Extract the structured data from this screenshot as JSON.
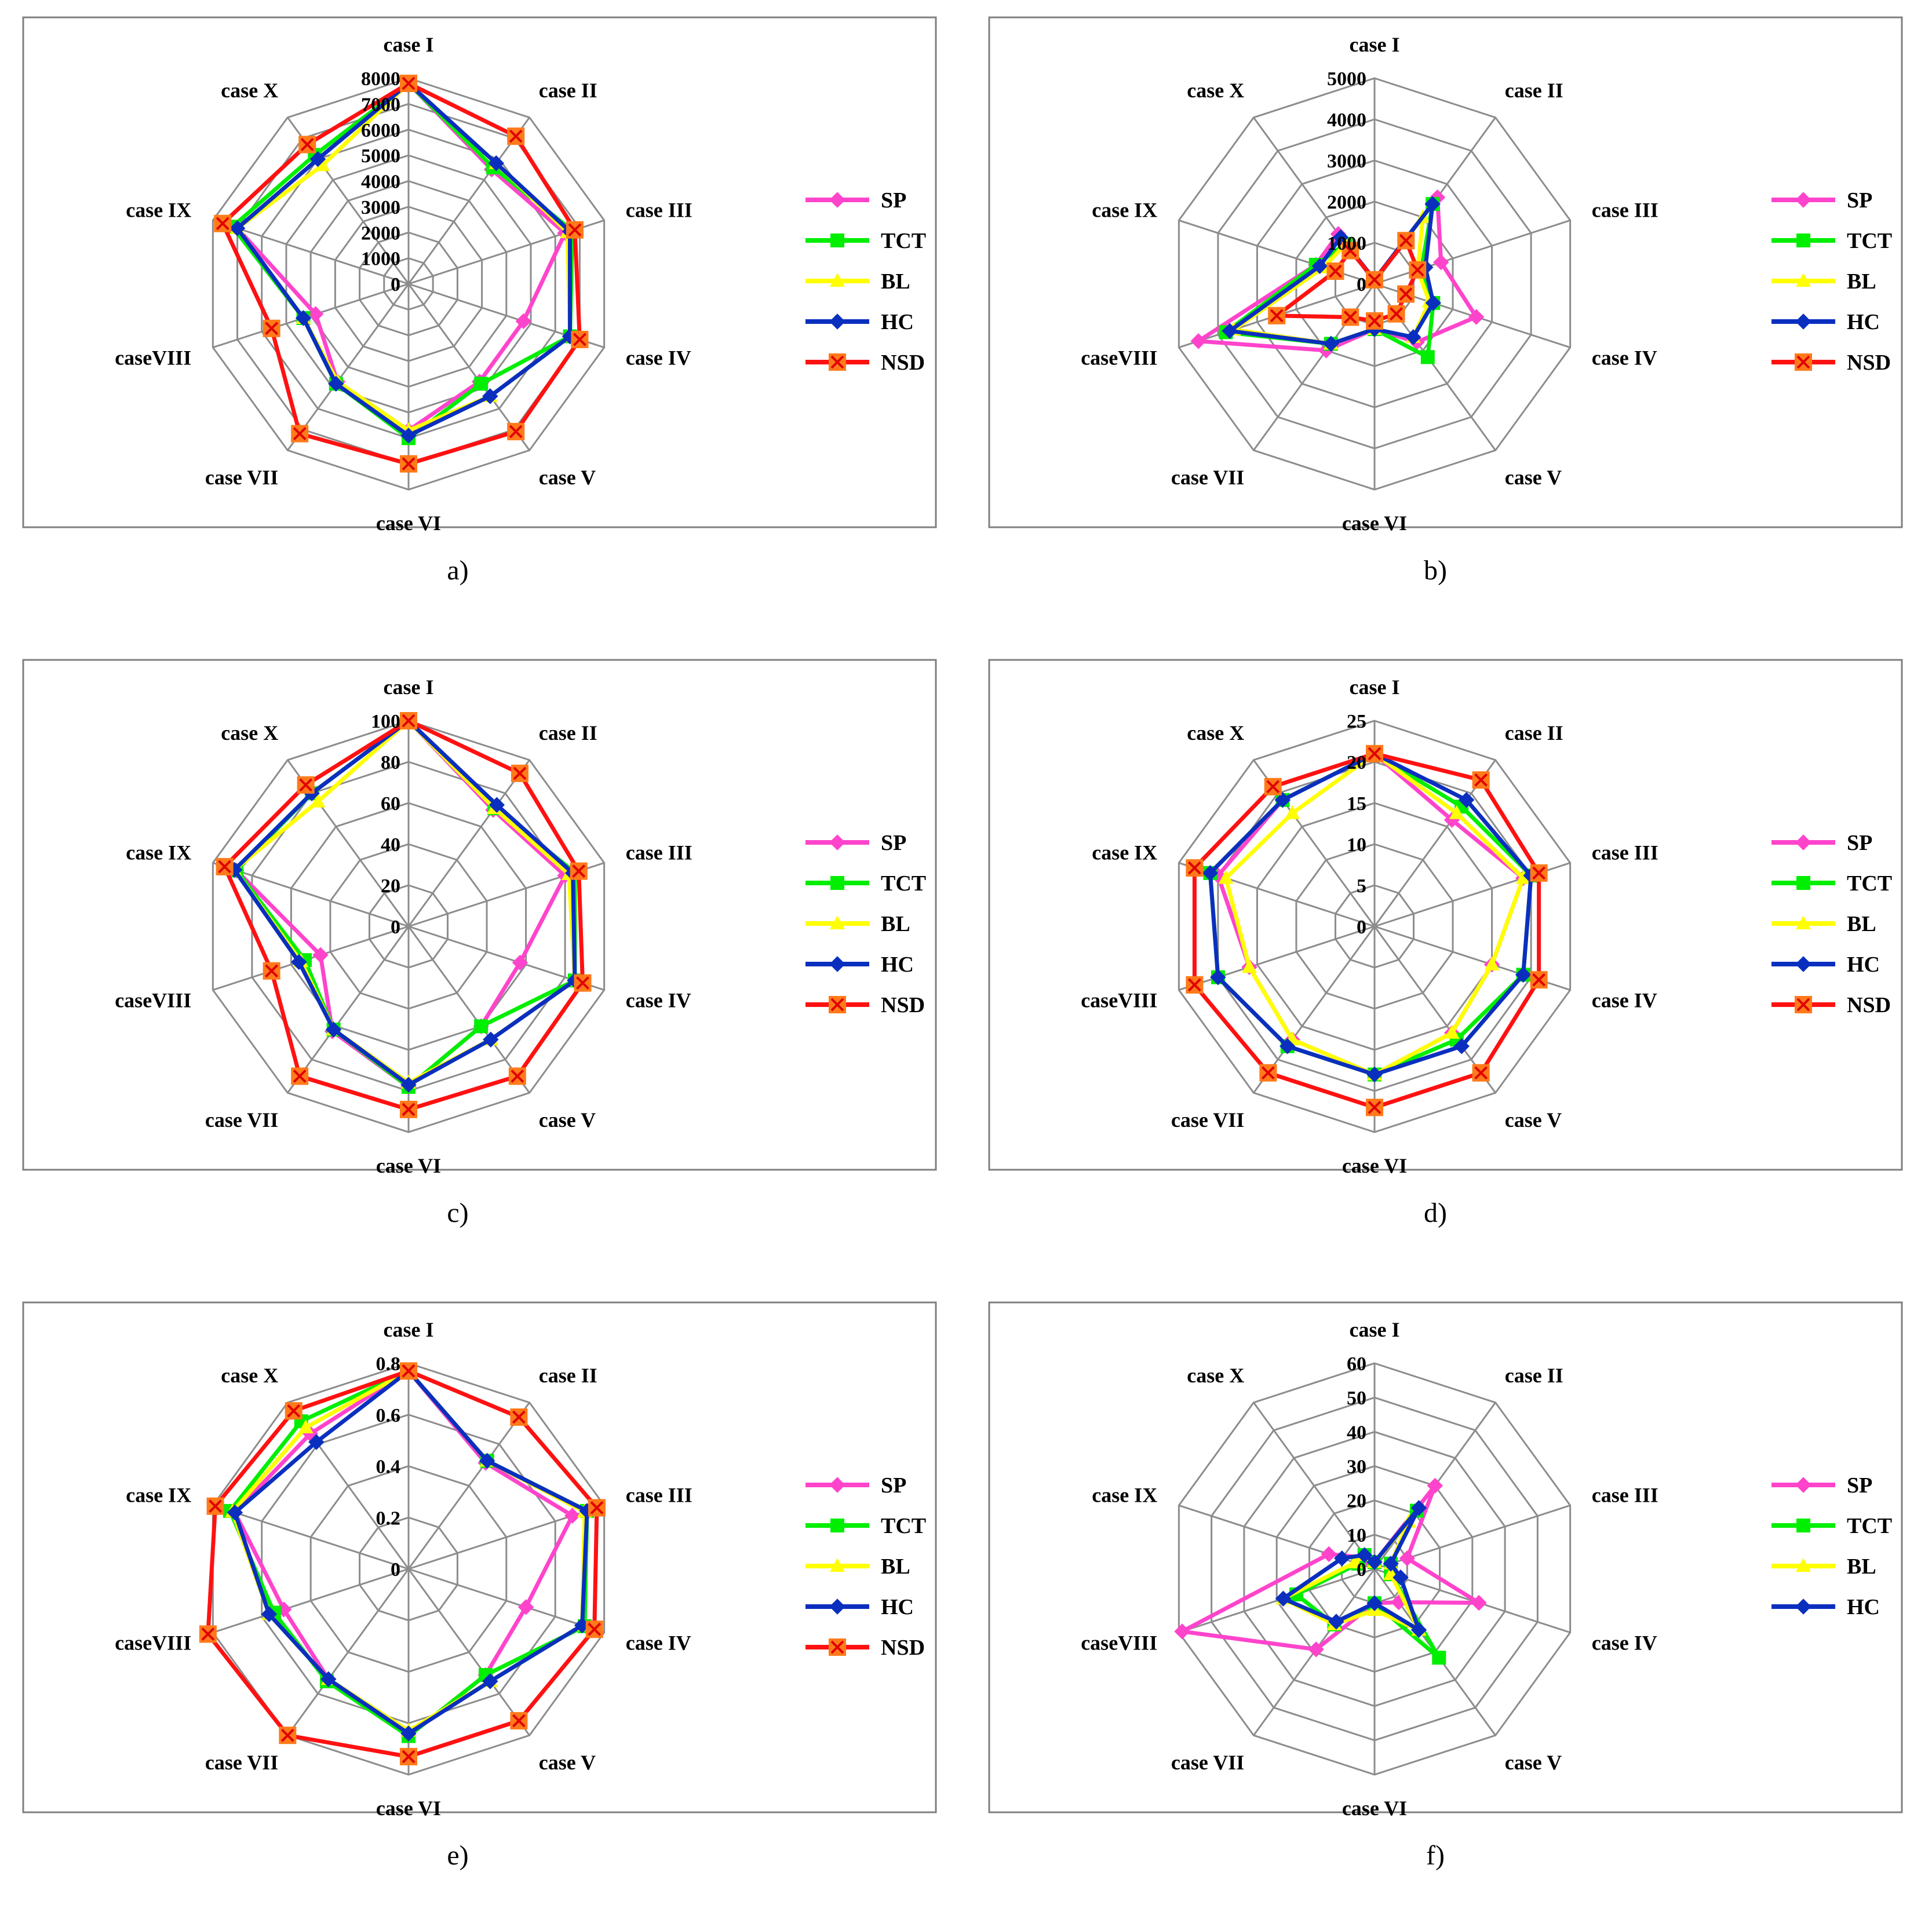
{
  "categories": [
    "case I",
    "case II",
    "case III",
    "case IV",
    "case V",
    "case VI",
    "case VII",
    "caseVIII",
    "case IX",
    "case X"
  ],
  "series_colors": {
    "SP": "#ff44cc",
    "TCT": "#00ee00",
    "BL": "#ffff00",
    "HC": "#0a2fbf",
    "NSD": "#ff1111"
  },
  "chart_data": [
    {
      "type": "radar",
      "caption": "a)",
      "categories": [
        "case I",
        "case II",
        "case III",
        "case IV",
        "case V",
        "case VI",
        "case VII",
        "caseVIII",
        "case IX",
        "case X"
      ],
      "ticks": [
        "0",
        "1000",
        "2000",
        "3000",
        "4000",
        "5000",
        "6000",
        "7000",
        "8000"
      ],
      "rmax": 8000,
      "legend": [
        "SP",
        "TCT",
        "BL",
        "HC",
        "NSD"
      ],
      "series": [
        {
          "name": "SP",
          "values": [
            7800,
            5500,
            6400,
            4700,
            4700,
            5700,
            4700,
            3800,
            7000,
            6000
          ]
        },
        {
          "name": "TCT",
          "values": [
            7800,
            5600,
            6700,
            6600,
            4800,
            6000,
            4800,
            4300,
            7200,
            6200
          ]
        },
        {
          "name": "BL",
          "values": [
            7800,
            5800,
            6500,
            6600,
            5400,
            5700,
            4700,
            4300,
            7000,
            5700
          ]
        },
        {
          "name": "HC",
          "values": [
            7800,
            5800,
            6600,
            6600,
            5400,
            5900,
            4800,
            4300,
            7000,
            6000
          ]
        },
        {
          "name": "NSD",
          "values": [
            7800,
            7100,
            6800,
            7000,
            7100,
            7000,
            7200,
            5600,
            7600,
            6700
          ]
        }
      ]
    },
    {
      "type": "radar",
      "caption": "b)",
      "categories": [
        "case I",
        "case II",
        "case III",
        "case IV",
        "case V",
        "case VI",
        "case VII",
        "caseVIII",
        "case IX",
        "case X"
      ],
      "ticks": [
        "0",
        "1000",
        "2000",
        "3000",
        "4000",
        "5000"
      ],
      "rmax": 5000,
      "legend": [
        "SP",
        "TCT",
        "BL",
        "HC",
        "NSD"
      ],
      "series": [
        {
          "name": "SP",
          "values": [
            100,
            2600,
            1700,
            2600,
            1750,
            1100,
            2000,
            4500,
            1500,
            1500
          ]
        },
        {
          "name": "TCT",
          "values": [
            100,
            2400,
            1200,
            1500,
            2200,
            1100,
            1800,
            3800,
            1500,
            1200
          ]
        },
        {
          "name": "BL",
          "values": [
            100,
            2000,
            1100,
            1400,
            1600,
            1100,
            1800,
            3600,
            1300,
            1200
          ]
        },
        {
          "name": "HC",
          "values": [
            100,
            2400,
            1300,
            1500,
            1600,
            1100,
            1800,
            3700,
            1400,
            1400
          ]
        },
        {
          "name": "NSD",
          "values": [
            100,
            1300,
            1100,
            800,
            900,
            900,
            1000,
            2500,
            1000,
            1000
          ]
        }
      ]
    },
    {
      "type": "radar",
      "caption": "c)",
      "categories": [
        "case I",
        "case II",
        "case III",
        "case IV",
        "case V",
        "case VI",
        "case VII",
        "caseVIII",
        "case IX",
        "case X"
      ],
      "ticks": [
        "0",
        "20",
        "40",
        "60",
        "80",
        "100"
      ],
      "rmax": 100,
      "legend": [
        "SP",
        "TCT",
        "BL",
        "HC",
        "NSD"
      ],
      "series": [
        {
          "name": "SP",
          "values": [
            100,
            70,
            80,
            57,
            60,
            78,
            63,
            45,
            88,
            80
          ]
        },
        {
          "name": "TCT",
          "values": [
            100,
            71,
            85,
            85,
            60,
            78,
            62,
            53,
            88,
            80
          ]
        },
        {
          "name": "BL",
          "values": [
            100,
            71,
            82,
            85,
            68,
            76,
            62,
            55,
            89,
            75
          ]
        },
        {
          "name": "HC",
          "values": [
            100,
            73,
            84,
            85,
            68,
            77,
            62,
            56,
            89,
            80
          ]
        },
        {
          "name": "NSD",
          "values": [
            100,
            92,
            87,
            89,
            90,
            89,
            90,
            70,
            94,
            85
          ]
        }
      ]
    },
    {
      "type": "radar",
      "caption": "d)",
      "categories": [
        "case I",
        "case II",
        "case III",
        "case IV",
        "case V",
        "case VI",
        "case VII",
        "caseVIII",
        "case IX",
        "case X"
      ],
      "ticks": [
        "0",
        "5",
        "10",
        "15",
        "20",
        "25"
      ],
      "rmax": 25,
      "legend": [
        "SP",
        "TCT",
        "BL",
        "HC",
        "NSD"
      ],
      "series": [
        {
          "name": "SP",
          "values": [
            21,
            16,
            19,
            15,
            16,
            18,
            17,
            16,
            20,
            19
          ]
        },
        {
          "name": "TCT",
          "values": [
            21,
            18,
            20,
            19,
            17,
            18,
            18,
            20,
            21,
            19
          ]
        },
        {
          "name": "BL",
          "values": [
            21,
            17,
            19,
            15,
            16,
            18,
            17,
            16,
            19,
            17
          ]
        },
        {
          "name": "HC",
          "values": [
            21,
            19,
            20,
            19,
            18,
            18,
            18,
            20,
            21,
            19
          ]
        },
        {
          "name": "NSD",
          "values": [
            21,
            22,
            21,
            21,
            22,
            22,
            22,
            23,
            23,
            21
          ]
        }
      ]
    },
    {
      "type": "radar",
      "caption": "e)",
      "categories": [
        "case I",
        "case II",
        "case III",
        "case IV",
        "case V",
        "case VI",
        "case VII",
        "caseVIII",
        "case IX",
        "case X"
      ],
      "ticks": [
        "0",
        "0.2",
        "0.4",
        "0.6",
        "0.8"
      ],
      "rmax": 0.8,
      "legend": [
        "SP",
        "TCT",
        "BL",
        "HC",
        "NSD"
      ],
      "series": [
        {
          "name": "SP",
          "values": [
            0.77,
            0.51,
            0.67,
            0.48,
            0.51,
            0.65,
            0.53,
            0.51,
            0.71,
            0.65
          ]
        },
        {
          "name": "TCT",
          "values": [
            0.77,
            0.52,
            0.73,
            0.72,
            0.51,
            0.65,
            0.54,
            0.55,
            0.73,
            0.71
          ]
        },
        {
          "name": "BL",
          "values": [
            0.77,
            0.52,
            0.72,
            0.71,
            0.54,
            0.63,
            0.53,
            0.57,
            0.72,
            0.68
          ]
        },
        {
          "name": "HC",
          "values": [
            0.77,
            0.52,
            0.73,
            0.71,
            0.54,
            0.64,
            0.53,
            0.57,
            0.71,
            0.61
          ]
        },
        {
          "name": "NSD",
          "values": [
            0.77,
            0.73,
            0.77,
            0.76,
            0.73,
            0.73,
            0.8,
            0.82,
            0.79,
            0.76
          ]
        }
      ]
    },
    {
      "type": "radar",
      "caption": "f)",
      "categories": [
        "case I",
        "case II",
        "case III",
        "case IV",
        "case V",
        "case VI",
        "case VII",
        "caseVIII",
        "case IX",
        "case X"
      ],
      "ticks": [
        "0",
        "10",
        "20",
        "30",
        "40",
        "50",
        "60"
      ],
      "rmax": 60,
      "legend": [
        "SP",
        "TCT",
        "BL",
        "HC"
      ],
      "series": [
        {
          "name": "SP",
          "values": [
            2,
            30,
            10,
            32,
            12,
            10,
            29,
            59,
            14,
            4
          ]
        },
        {
          "name": "TCT",
          "values": [
            2,
            21,
            5,
            5,
            32,
            10,
            20,
            24,
            5,
            5
          ]
        },
        {
          "name": "BL",
          "values": [
            2,
            17,
            5,
            5,
            22,
            12,
            20,
            28,
            6,
            5
          ]
        },
        {
          "name": "HC",
          "values": [
            2,
            22,
            5,
            8,
            22,
            10,
            19,
            28,
            10,
            5
          ]
        }
      ]
    }
  ]
}
